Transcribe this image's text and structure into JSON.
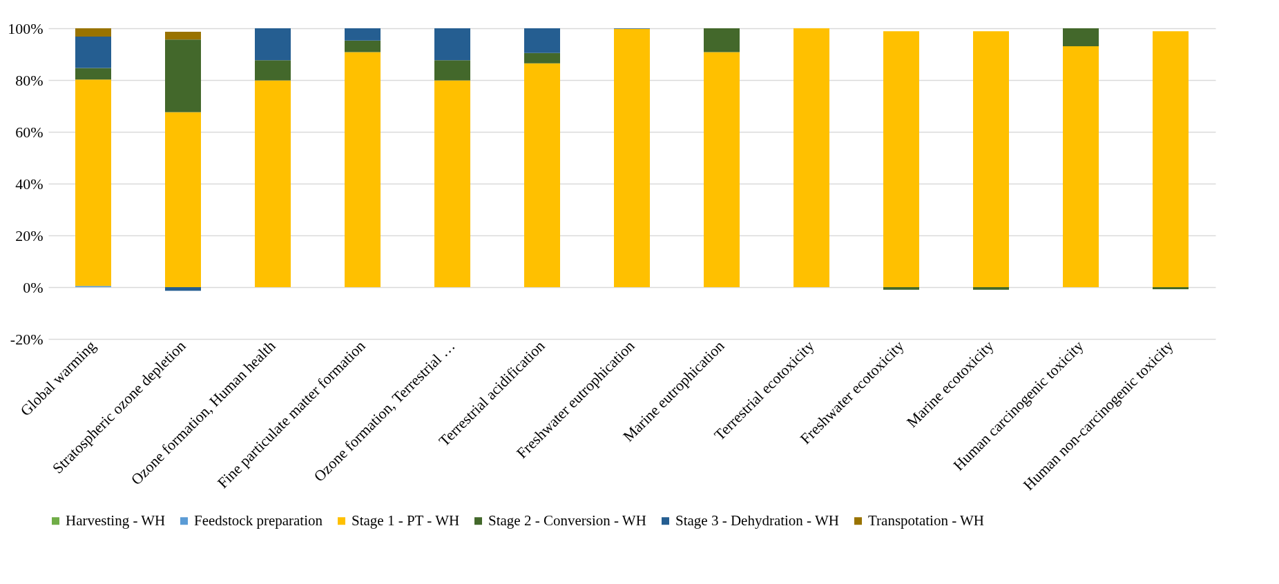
{
  "chart_data": {
    "type": "bar",
    "stacked": true,
    "categories": [
      "Global warming",
      "Stratospheric ozone depletion",
      "Ozone formation, Human health",
      "Fine particulate matter formation",
      "Ozone formation, Terrestrial …",
      "Terrestrial acidification",
      "Freshwater eutrophication",
      "Marine eutrophication",
      "Terrestrial ecotoxicity",
      "Freshwater ecotoxicity",
      "Marine ecotoxicity",
      "Human carcinogenic toxicity",
      "Human non-carcinogenic toxicity"
    ],
    "series": [
      {
        "name": "Harvesting - WH",
        "color": "#70ad47",
        "values": [
          0,
          0,
          0,
          0,
          0,
          0,
          0,
          0,
          0,
          0,
          0,
          0,
          0
        ]
      },
      {
        "name": "Feedstock preparation",
        "color": "#5b9bd5",
        "values": [
          0.5,
          0,
          0,
          0,
          0,
          0,
          0,
          0,
          0,
          0,
          0,
          0,
          0
        ]
      },
      {
        "name": "Stage 1 - PT - WH",
        "color": "#ffc000",
        "values": [
          79.7,
          67.6,
          79.9,
          90.8,
          79.9,
          86.5,
          99.8,
          90.8,
          100,
          98.9,
          98.9,
          93.1,
          98.9
        ]
      },
      {
        "name": "Stage 2 - Conversion - WH",
        "color": "#43682b",
        "values": [
          4.5,
          28.1,
          7.8,
          4.5,
          7.8,
          4.0,
          0,
          9.2,
          0,
          -1.0,
          -1.0,
          6.9,
          -0.8
        ]
      },
      {
        "name": "Stage 3 - Dehydration - WH",
        "color": "#255e91",
        "values": [
          12.1,
          -1.4,
          12.3,
          4.7,
          12.3,
          9.5,
          0.2,
          0,
          0,
          0,
          0,
          0,
          0
        ]
      },
      {
        "name": "Transpotation - WH",
        "color": "#997300",
        "values": [
          3.2,
          3.0,
          0,
          0,
          0,
          0,
          0,
          0,
          0,
          0,
          0,
          0,
          0
        ]
      }
    ],
    "ylim": [
      -20,
      100
    ],
    "yticks": [
      {
        "value": -20,
        "label": "-20%"
      },
      {
        "value": 0,
        "label": "0%"
      },
      {
        "value": 20,
        "label": "20%"
      },
      {
        "value": 40,
        "label": "40%"
      },
      {
        "value": 60,
        "label": "60%"
      },
      {
        "value": 80,
        "label": "80%"
      },
      {
        "value": 100,
        "label": "100%"
      }
    ],
    "grid": "y",
    "legend": "bottom"
  }
}
